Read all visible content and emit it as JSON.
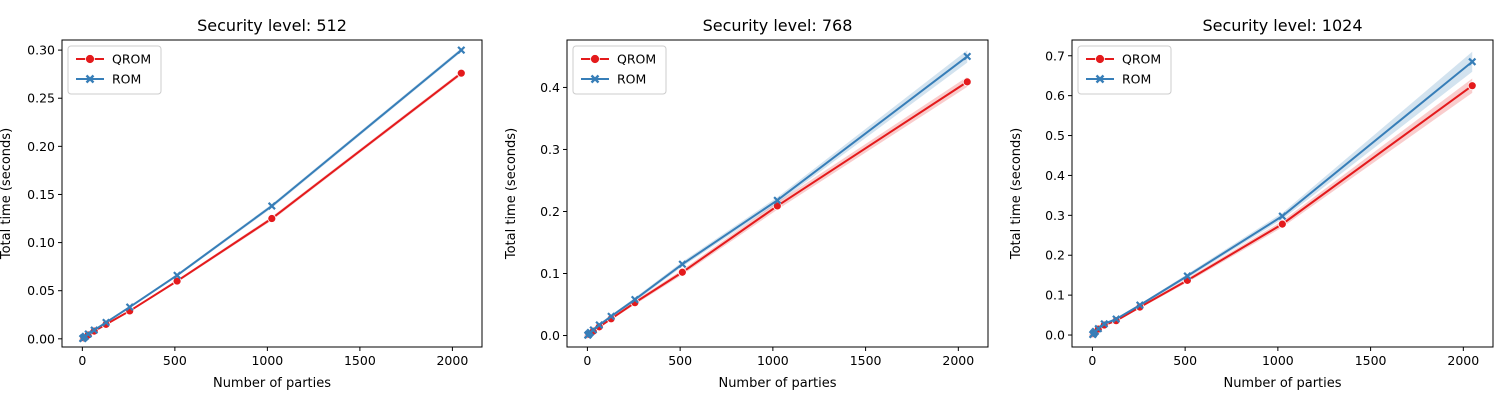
{
  "chart_data": [
    {
      "type": "line",
      "title": "Security level: 512",
      "xlabel": "Number of parties",
      "ylabel": "Total time (seconds)",
      "x": [
        2,
        4,
        8,
        16,
        32,
        64,
        128,
        256,
        512,
        1024,
        2048
      ],
      "xlim": [
        -110,
        2160
      ],
      "ylim": [
        -0.0085,
        0.3105
      ],
      "xticks": [
        0,
        500,
        1000,
        1500,
        2000
      ],
      "xticklabels": [
        "0",
        "500",
        "1000",
        "1500",
        "2000"
      ],
      "yticks": [
        0.0,
        0.05,
        0.1,
        0.15,
        0.2,
        0.25,
        0.3
      ],
      "yticklabels": [
        "0.00",
        "0.05",
        "0.10",
        "0.15",
        "0.20",
        "0.25",
        "0.30"
      ],
      "legend": "top-left",
      "grid": false,
      "series": [
        {
          "name": "QROM",
          "color": "#e41a1c",
          "marker": "circle",
          "values": [
            0.0003,
            0.0005,
            0.001,
            0.002,
            0.004,
            0.008,
            0.015,
            0.029,
            0.06,
            0.125,
            0.276
          ],
          "band": [
            0.0005,
            0.0005,
            0.0005,
            0.0005,
            0.0005,
            0.0005,
            0.0008,
            0.001,
            0.0015,
            0.002,
            0.002
          ]
        },
        {
          "name": "ROM",
          "color": "#377eb8",
          "marker": "x",
          "values": [
            0.0003,
            0.0006,
            0.0012,
            0.0025,
            0.005,
            0.009,
            0.017,
            0.033,
            0.066,
            0.138,
            0.3
          ],
          "band": [
            0.0005,
            0.0005,
            0.0005,
            0.0005,
            0.0005,
            0.0005,
            0.0008,
            0.001,
            0.0015,
            0.002,
            0.002
          ]
        }
      ]
    },
    {
      "type": "line",
      "title": "Security level: 768",
      "xlabel": "Number of parties",
      "ylabel": "Total time (seconds)",
      "x": [
        2,
        4,
        8,
        16,
        32,
        64,
        128,
        256,
        512,
        1024,
        2048
      ],
      "xlim": [
        -110,
        2160
      ],
      "ylim": [
        -0.0185,
        0.4765
      ],
      "xticks": [
        0,
        500,
        1000,
        1500,
        2000
      ],
      "xticklabels": [
        "0",
        "500",
        "1000",
        "1500",
        "2000"
      ],
      "yticks": [
        0.0,
        0.1,
        0.2,
        0.3,
        0.4
      ],
      "yticklabels": [
        "0.0",
        "0.1",
        "0.2",
        "0.3",
        "0.4"
      ],
      "legend": "top-left",
      "grid": false,
      "series": [
        {
          "name": "QROM",
          "color": "#e41a1c",
          "marker": "circle",
          "values": [
            0.0005,
            0.001,
            0.002,
            0.004,
            0.007,
            0.014,
            0.027,
            0.053,
            0.102,
            0.209,
            0.409
          ],
          "band": [
            0.001,
            0.001,
            0.001,
            0.001,
            0.001,
            0.002,
            0.002,
            0.003,
            0.004,
            0.006,
            0.008
          ]
        },
        {
          "name": "ROM",
          "color": "#377eb8",
          "marker": "x",
          "values": [
            0.0006,
            0.0012,
            0.0025,
            0.005,
            0.009,
            0.017,
            0.031,
            0.058,
            0.115,
            0.218,
            0.45
          ],
          "band": [
            0.001,
            0.001,
            0.001,
            0.001,
            0.001,
            0.002,
            0.002,
            0.003,
            0.004,
            0.005,
            0.01
          ]
        }
      ]
    },
    {
      "type": "line",
      "title": "Security level: 1024",
      "xlabel": "Number of parties",
      "ylabel": "Total time (seconds)",
      "x": [
        2,
        4,
        8,
        16,
        32,
        64,
        128,
        256,
        512,
        1024,
        2048
      ],
      "xlim": [
        -110,
        2160
      ],
      "ylim": [
        -0.03,
        0.7395
      ],
      "xticks": [
        0,
        500,
        1000,
        1500,
        2000
      ],
      "xticklabels": [
        "0",
        "500",
        "1000",
        "1500",
        "2000"
      ],
      "yticks": [
        0.0,
        0.1,
        0.2,
        0.3,
        0.4,
        0.5,
        0.6,
        0.7
      ],
      "yticklabels": [
        "0.0",
        "0.1",
        "0.2",
        "0.3",
        "0.4",
        "0.5",
        "0.6",
        "0.7"
      ],
      "legend": "top-left",
      "grid": false,
      "series": [
        {
          "name": "QROM",
          "color": "#e41a1c",
          "marker": "circle",
          "values": [
            0.001,
            0.002,
            0.004,
            0.008,
            0.015,
            0.025,
            0.036,
            0.07,
            0.137,
            0.278,
            0.625
          ],
          "band": [
            0.001,
            0.001,
            0.001,
            0.001,
            0.002,
            0.002,
            0.002,
            0.003,
            0.005,
            0.008,
            0.018
          ]
        },
        {
          "name": "ROM",
          "color": "#377eb8",
          "marker": "x",
          "values": [
            0.0012,
            0.0025,
            0.005,
            0.009,
            0.016,
            0.028,
            0.04,
            0.075,
            0.148,
            0.298,
            0.685
          ],
          "band": [
            0.001,
            0.001,
            0.001,
            0.001,
            0.002,
            0.002,
            0.002,
            0.003,
            0.005,
            0.008,
            0.025
          ]
        }
      ]
    }
  ]
}
